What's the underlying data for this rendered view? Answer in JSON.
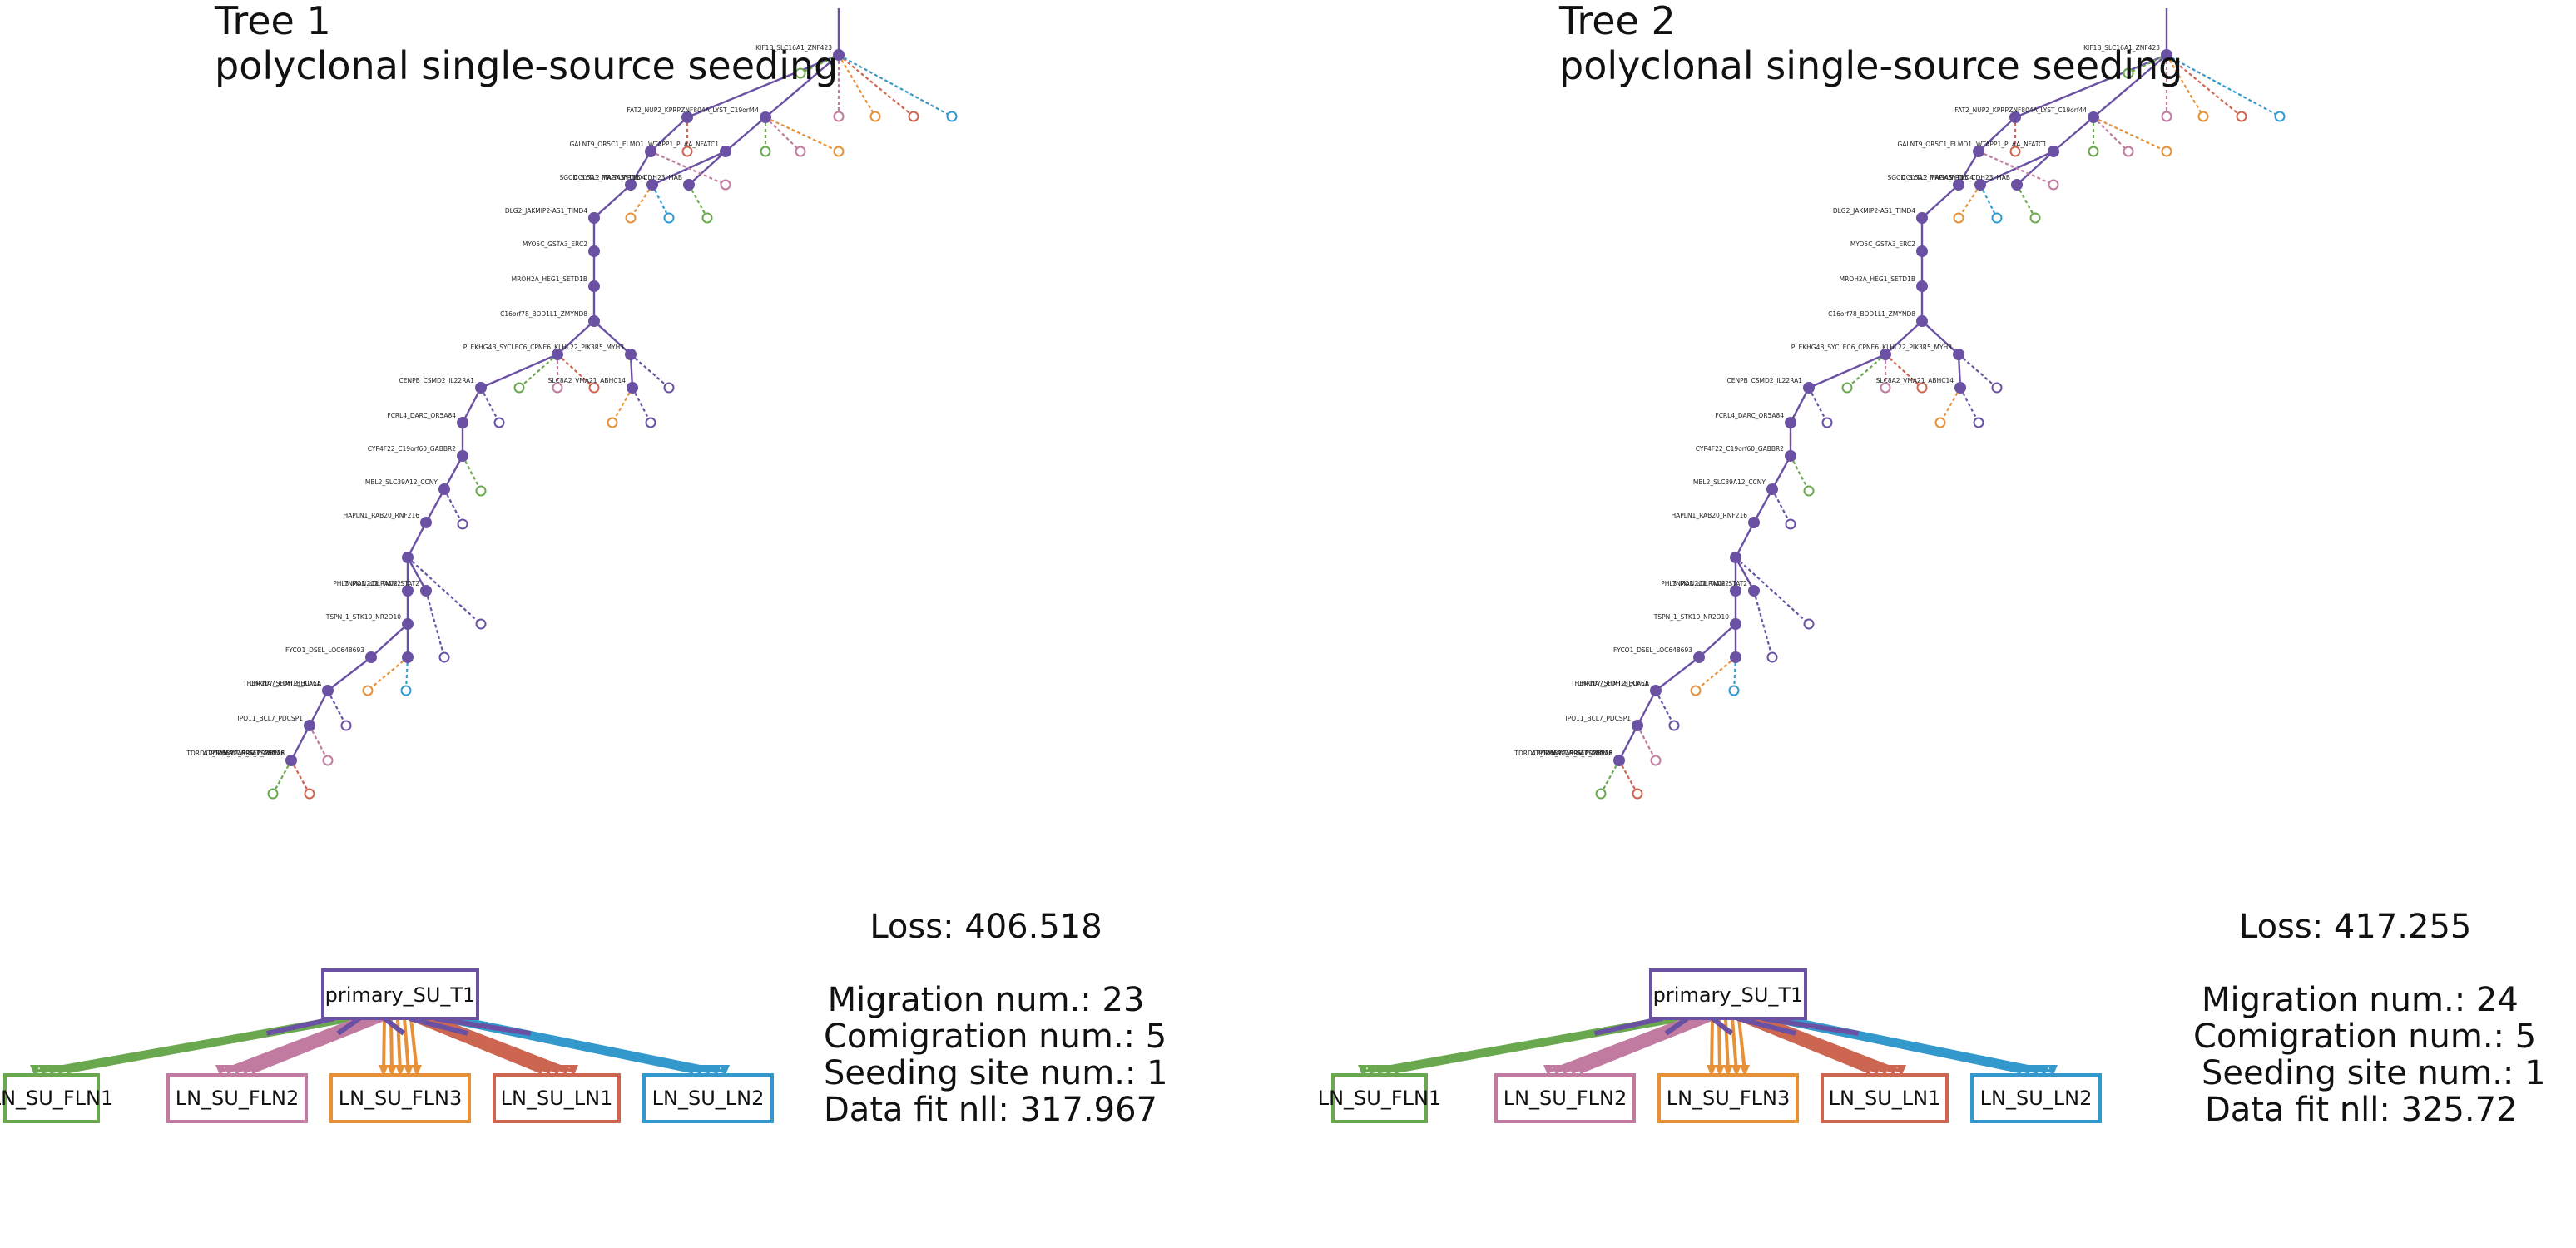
{
  "colors": {
    "primary": "#6a51a3",
    "LN_SU_FLN1": "#6aa84f",
    "LN_SU_FLN2": "#c27ba0",
    "LN_SU_FLN3": "#e69138",
    "LN_SU_LN1": "#cc6651",
    "LN_SU_LN2": "#3399cc"
  },
  "panels": [
    {
      "title": "Tree 1",
      "subtitle": "polyclonal single-source seeding",
      "loss": "Loss: 406.518",
      "migration": "Migration num.: 23",
      "comigration": "Comigration num.: 5",
      "seeding": "Seeding site num.: 1",
      "datafit": "Data fit nll: 317.967",
      "graph": {
        "primary": "primary_SU_T1",
        "sites": [
          "LN_SU_FLN1",
          "LN_SU_FLN2",
          "LN_SU_FLN3",
          "LN_SU_LN1",
          "LN_SU_LN2"
        ]
      },
      "tree_labels": [
        "KIF1B_SLC16A1_ZNF423",
        "FAT2_NUP2_KPRP",
        "ZNF804A_LYST_C19orf44",
        "GALNT9_OR5C1_ELMO1",
        "WTAPP1_PLAA_NFATC1",
        "SGCD_SYTL2_TRPM3",
        "SYT15_CDH23_MAB",
        "COL5A1_MAGA_FRMD4",
        "DLG2_JAKMIP2-AS1_TIMD4",
        "MYO5C_GSTA3_ERC2",
        "MROH2A_HEG1_SETD1B",
        "C16orf78_BOD1L1_ZMYND8",
        "PLEKHG4B_SYCLEC6_CPNE6",
        "KLHL22_PIK3R5_MYH3",
        "CENPB_CSMD2_IL22RA1",
        "SLC8A2_VMA21_ABHC14",
        "FCRL4_DARC_OR5A84",
        "CYP4F22_C19orf60_GABBR2",
        "MBL2_SLC39A12_CCNY",
        "HAPLN1_RAB20_RNF216",
        "PHL3_MAN2C1_TIAM2",
        "TNPO1_LDLRAD2_STAT2",
        "TSPN_1_STK10_NR2D10",
        "FYCO1_DSEL_LOC648693",
        "CHRNA7_CDH18_KIF5A",
        "THEM107_SHMT2_BLACE",
        "IPO11_BCL7_PDCSP1",
        "ATP10A_WDR96_TSPAN18",
        "TDRD12_SMARCA5_SEC03BP2L",
        "OR5B12_GRIA2_ABCA6"
      ]
    },
    {
      "title": "Tree 2",
      "subtitle": "polyclonal single-source seeding",
      "loss": "Loss: 417.255",
      "migration": "Migration num.: 24",
      "comigration": "Comigration num.: 5",
      "seeding": "Seeding site num.: 1",
      "datafit": "Data fit nll: 325.72",
      "graph": {
        "primary": "primary_SU_T1",
        "sites": [
          "LN_SU_FLN1",
          "LN_SU_FLN2",
          "LN_SU_FLN3",
          "LN_SU_LN1",
          "LN_SU_LN2"
        ]
      },
      "tree_labels": [
        "KIF1B_SLC16A1_ZNF423",
        "FAT2_NUP2_KPRP",
        "ZNF804A_LYST_C19orf44",
        "GALNT9_OR5C1_ELMO1",
        "WTAPP1_PLAA_NFATC1",
        "SGCD_SYTL2_TRPM3",
        "SYT15_CDH23_MAB",
        "COL5A1_MAGA_FRMD4",
        "DLG2_JAKMIP2-AS1_TIMD4",
        "MYO5C_GSTA3_ERC2",
        "MROH2A_HEG1_SETD1B",
        "C16orf78_BOD1L1_ZMYND8",
        "PLEKHG4B_SYCLEC6_CPNE6",
        "KLHL22_PIK3R5_MYH3",
        "CENPB_CSMD2_IL22RA1",
        "SLC8A2_VMA21_ABHC14",
        "FCRL4_DARC_OR5A84",
        "CYP4F22_C19orf60_GABBR2",
        "MBL2_SLC39A12_CCNY",
        "HAPLN1_RAB20_RNF216",
        "PHL3_MAN2C1_TIAM2",
        "TNPO1_LDLRAD2_STAT2",
        "TSPN_1_STK10_NR2D10",
        "FYCO1_DSEL_LOC648693",
        "CHRNA7_CDH18_KIF5A",
        "THEM107_SHMT2_BLACE",
        "IPO11_BCL7_PDCSP1",
        "ATP10A_WDR96_TSPAN18",
        "TDRD12_SMARCA5_SEC03BP2L",
        "OR5B12_GRIA2_ABCA6"
      ]
    }
  ]
}
